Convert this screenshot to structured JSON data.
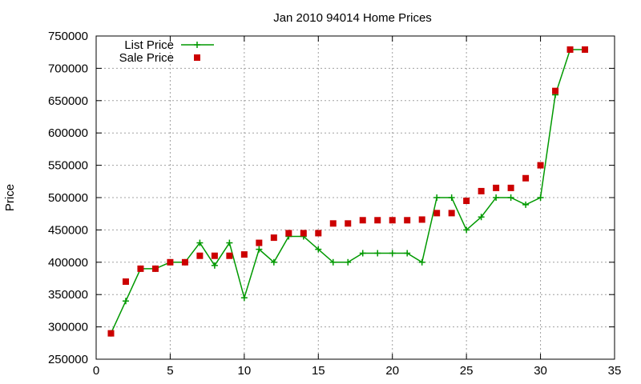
{
  "chart_data": {
    "type": "line",
    "title": "Jan 2010 94014 Home Prices",
    "xlabel": "",
    "ylabel": "Price",
    "xlim": [
      0,
      35
    ],
    "ylim": [
      250000,
      750000
    ],
    "x_ticks": [
      0,
      5,
      10,
      15,
      20,
      25,
      30,
      35
    ],
    "y_ticks": [
      250000,
      300000,
      350000,
      400000,
      450000,
      500000,
      550000,
      600000,
      650000,
      700000,
      750000
    ],
    "grid": true,
    "legend_position": "top-left",
    "series": [
      {
        "name": "List Price",
        "style": "line-with-plus-markers",
        "color": "#009900",
        "x": [
          1,
          2,
          3,
          4,
          5,
          6,
          7,
          8,
          9,
          10,
          11,
          12,
          13,
          14,
          15,
          16,
          17,
          18,
          19,
          20,
          21,
          22,
          23,
          24,
          25,
          26,
          27,
          28,
          29,
          30,
          31,
          32,
          33
        ],
        "y": [
          290000,
          340000,
          390000,
          390000,
          400000,
          400000,
          430000,
          395000,
          430000,
          345000,
          420000,
          400000,
          440000,
          440000,
          420000,
          400000,
          400000,
          414000,
          414000,
          414000,
          414000,
          400000,
          500000,
          500000,
          450000,
          470000,
          500000,
          500000,
          489000,
          500000,
          659000,
          729000,
          729000
        ]
      },
      {
        "name": "Sale Price",
        "style": "square-markers",
        "color": "#cc0000",
        "x": [
          1,
          2,
          3,
          4,
          5,
          6,
          7,
          8,
          9,
          10,
          11,
          12,
          13,
          14,
          15,
          16,
          17,
          18,
          19,
          20,
          21,
          22,
          23,
          24,
          25,
          26,
          27,
          28,
          29,
          30,
          31,
          32,
          33
        ],
        "y": [
          290000,
          370000,
          390000,
          390000,
          400000,
          400000,
          410000,
          410000,
          410000,
          412000,
          430000,
          438000,
          445000,
          445000,
          445000,
          460000,
          460000,
          465000,
          465000,
          465000,
          465000,
          466000,
          476000,
          476000,
          495000,
          510000,
          515000,
          515000,
          530000,
          550000,
          665000,
          729000,
          729000
        ]
      }
    ]
  }
}
